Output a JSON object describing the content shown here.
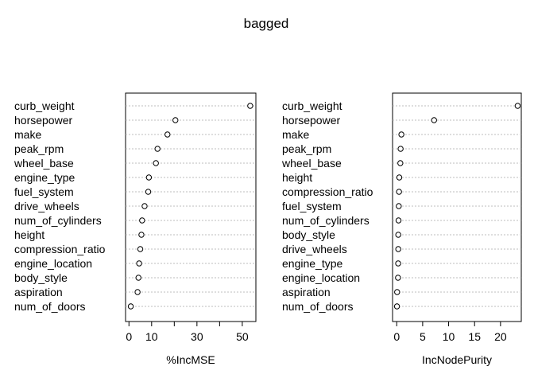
{
  "title": "bagged",
  "chart_data": [
    {
      "type": "scatter",
      "subtype": "dotchart",
      "xlabel": "%IncMSE",
      "xlim": [
        -1.5,
        56
      ],
      "xticks": [
        0,
        10,
        30,
        50
      ],
      "tick_marks": [
        0,
        10,
        20,
        30,
        40,
        50
      ],
      "categories": [
        "curb_weight",
        "horsepower",
        "make",
        "peak_rpm",
        "wheel_base",
        "engine_type",
        "fuel_system",
        "drive_wheels",
        "num_of_cylinders",
        "height",
        "compression_ratio",
        "engine_location",
        "body_style",
        "aspiration",
        "num_of_doors"
      ],
      "values": [
        53.5,
        20.5,
        17.0,
        12.6,
        11.9,
        8.8,
        8.5,
        6.9,
        5.8,
        5.5,
        5.0,
        4.5,
        4.2,
        3.8,
        0.8
      ],
      "grid": "horizontal dotted"
    },
    {
      "type": "scatter",
      "subtype": "dotchart",
      "xlabel": "IncNodePurity",
      "xlim": [
        -0.8,
        24.0
      ],
      "xticks": [
        0,
        5,
        10,
        15,
        20
      ],
      "tick_marks": [
        0,
        5,
        10,
        15,
        20
      ],
      "categories": [
        "curb_weight",
        "horsepower",
        "make",
        "peak_rpm",
        "wheel_base",
        "height",
        "compression_ratio",
        "fuel_system",
        "num_of_cylinders",
        "body_style",
        "drive_wheels",
        "engine_type",
        "engine_location",
        "aspiration",
        "num_of_doors"
      ],
      "values": [
        23.3,
        7.2,
        0.9,
        0.75,
        0.7,
        0.5,
        0.45,
        0.4,
        0.35,
        0.3,
        0.3,
        0.28,
        0.25,
        0.08,
        0.05
      ],
      "grid": "horizontal dotted"
    }
  ]
}
